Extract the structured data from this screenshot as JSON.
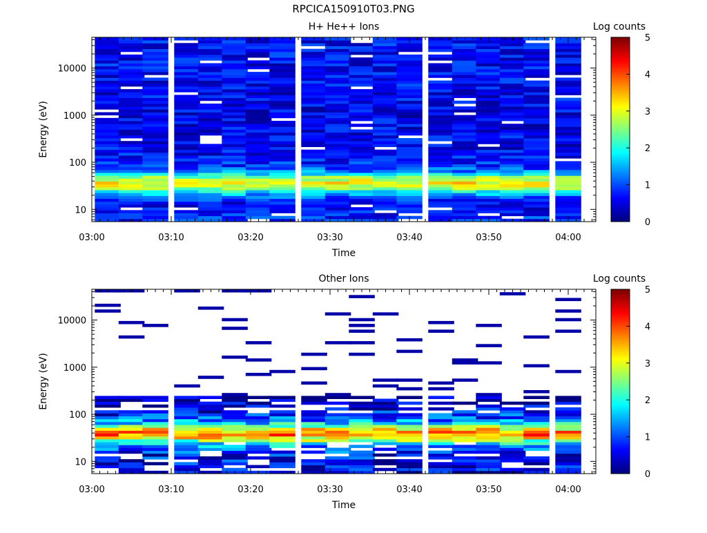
{
  "figure_title": "RPCICA150910T03.PNG",
  "chart_data": [
    {
      "type": "heatmap",
      "title": "H+ He++ Ions",
      "xlabel": "Time",
      "ylabel": "Energy (eV)",
      "colorbar_label": "Log counts",
      "colorbar_ticks": [
        "0",
        "1",
        "2",
        "3",
        "4",
        "5"
      ],
      "x_ticks": [
        "03:00",
        "03:10",
        "03:20",
        "03:30",
        "03:40",
        "03:50",
        "04:00"
      ],
      "y_ticks": [
        "10",
        "100",
        "1000",
        "10000"
      ],
      "y_scale": "log",
      "ylim": [
        5.5,
        45000
      ],
      "clim": [
        0,
        5
      ],
      "time_bins": [
        "03:02",
        "03:05",
        "03:08",
        "03:12",
        "03:15",
        "03:18",
        "03:21",
        "03:24",
        "03:28",
        "03:31",
        "03:34",
        "03:37",
        "03:40",
        "03:44",
        "03:47",
        "03:50",
        "03:53",
        "03:56",
        "04:00"
      ],
      "energy_profile": [
        {
          "e": 7,
          "v": 0.8
        },
        {
          "e": 10,
          "v": 0.6
        },
        {
          "e": 14,
          "v": 0.7
        },
        {
          "e": 18,
          "v": 1.0
        },
        {
          "e": 24,
          "v": 1.9
        },
        {
          "e": 30,
          "v": 2.9
        },
        {
          "e": 38,
          "v": 3.2
        },
        {
          "e": 48,
          "v": 2.6
        },
        {
          "e": 60,
          "v": 1.4
        },
        {
          "e": 80,
          "v": 0.9
        },
        {
          "e": 110,
          "v": 0.7
        },
        {
          "e": 200,
          "v": 0.6
        },
        {
          "e": 500,
          "v": 0.55
        },
        {
          "e": 1000,
          "v": 0.55
        },
        {
          "e": 3000,
          "v": 0.6
        },
        {
          "e": 10000,
          "v": 0.6
        },
        {
          "e": 40000,
          "v": 0.65
        }
      ]
    },
    {
      "type": "heatmap",
      "title": "Other Ions",
      "xlabel": "Time",
      "ylabel": "Energy (eV)",
      "colorbar_label": "Log counts",
      "colorbar_ticks": [
        "0",
        "1",
        "2",
        "3",
        "4",
        "5"
      ],
      "x_ticks": [
        "03:00",
        "03:10",
        "03:20",
        "03:30",
        "03:40",
        "03:50",
        "04:00"
      ],
      "y_ticks": [
        "10",
        "100",
        "1000",
        "10000"
      ],
      "y_scale": "log",
      "ylim": [
        5.5,
        45000
      ],
      "clim": [
        0,
        5
      ],
      "time_bins": [
        "03:02",
        "03:05",
        "03:08",
        "03:12",
        "03:15",
        "03:18",
        "03:21",
        "03:24",
        "03:28",
        "03:31",
        "03:34",
        "03:37",
        "03:40",
        "03:44",
        "03:47",
        "03:50",
        "03:53",
        "03:56",
        "04:00"
      ],
      "energy_profile": [
        {
          "e": 7,
          "v": 0.5
        },
        {
          "e": 10,
          "v": 0.6
        },
        {
          "e": 14,
          "v": 0.7
        },
        {
          "e": 18,
          "v": 1.0
        },
        {
          "e": 24,
          "v": 1.8
        },
        {
          "e": 30,
          "v": 3.0
        },
        {
          "e": 38,
          "v": 3.8
        },
        {
          "e": 48,
          "v": 3.2
        },
        {
          "e": 60,
          "v": 2.0
        },
        {
          "e": 80,
          "v": 1.0
        },
        {
          "e": 110,
          "v": 0.6
        },
        {
          "e": 160,
          "v": 0.3
        },
        {
          "e": 220,
          "v": 0.2
        }
      ],
      "sparse_high_energy": true
    }
  ]
}
